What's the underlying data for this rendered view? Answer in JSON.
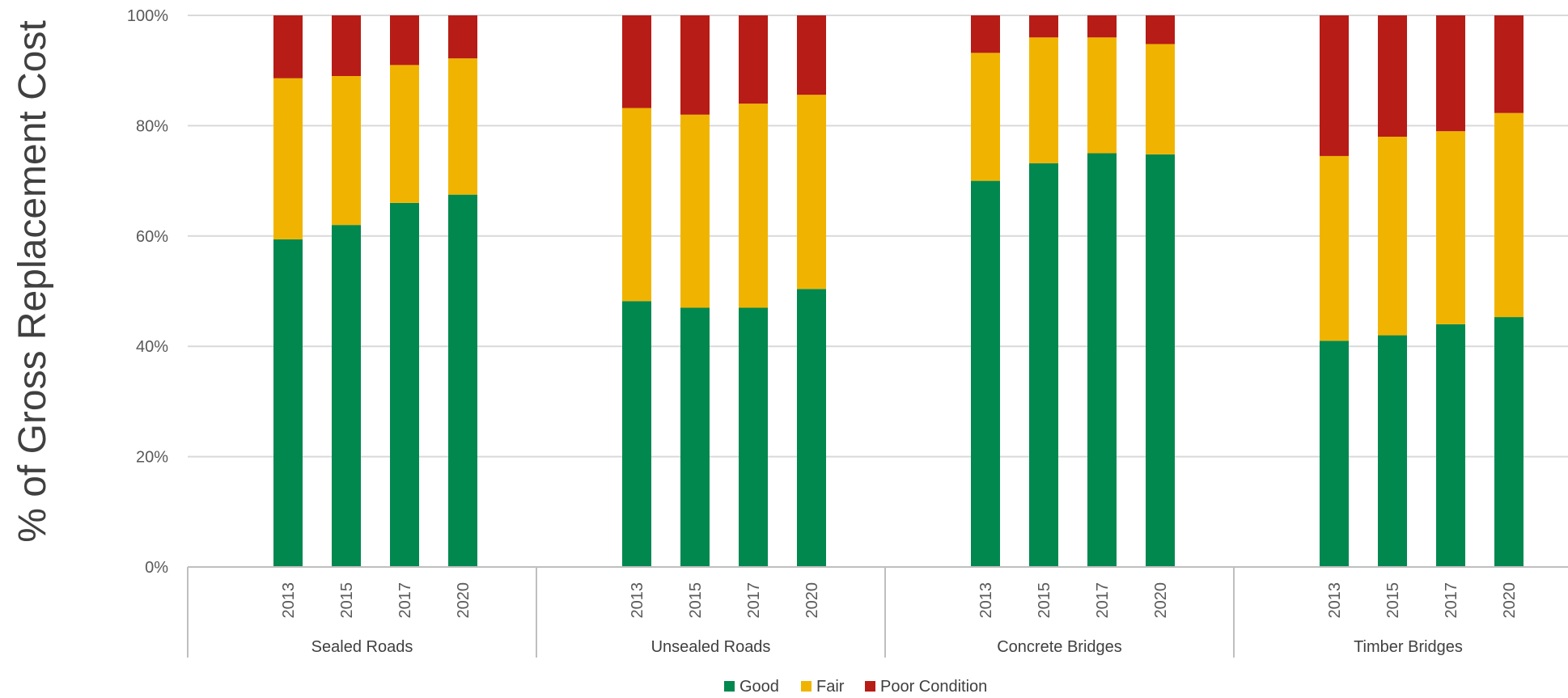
{
  "chart_data": {
    "type": "bar",
    "stacked": true,
    "percent_stacked": true,
    "title": "",
    "ylabel": "% of Gross Replacement Cost",
    "xlabel": "",
    "ylim": [
      0,
      100
    ],
    "y_ticks": [
      "0%",
      "20%",
      "40%",
      "60%",
      "80%",
      "100%"
    ],
    "grid": true,
    "legend_position": "bottom",
    "groups": [
      {
        "name": "Sealed Roads",
        "categories": [
          "2013",
          "2015",
          "2017",
          "2020"
        ]
      },
      {
        "name": "Unsealed Roads",
        "categories": [
          "2013",
          "2015",
          "2017",
          "2020"
        ]
      },
      {
        "name": "Concrete Bridges",
        "categories": [
          "2013",
          "2015",
          "2017",
          "2020"
        ]
      },
      {
        "name": "Timber Bridges",
        "categories": [
          "2013",
          "2015",
          "2017",
          "2020"
        ]
      }
    ],
    "series": [
      {
        "name": "Good",
        "color": "#00884f",
        "values": [
          59.4,
          62,
          66,
          67.5,
          48.2,
          47,
          47,
          50.4,
          70,
          73.2,
          75,
          74.8,
          41,
          42,
          44,
          45.3
        ]
      },
      {
        "name": "Fair",
        "color": "#f0b400",
        "values": [
          29.2,
          27,
          25,
          24.7,
          35,
          35,
          37,
          35.2,
          23.2,
          22.8,
          21,
          20,
          33.5,
          36,
          35,
          37
        ]
      },
      {
        "name": "Poor Condition",
        "color": "#b71c16",
        "values": [
          11.4,
          11,
          9,
          7.8,
          16.8,
          18,
          16,
          14.4,
          6.8,
          4,
          4,
          5.2,
          25.5,
          22,
          21,
          17.7
        ]
      }
    ]
  }
}
